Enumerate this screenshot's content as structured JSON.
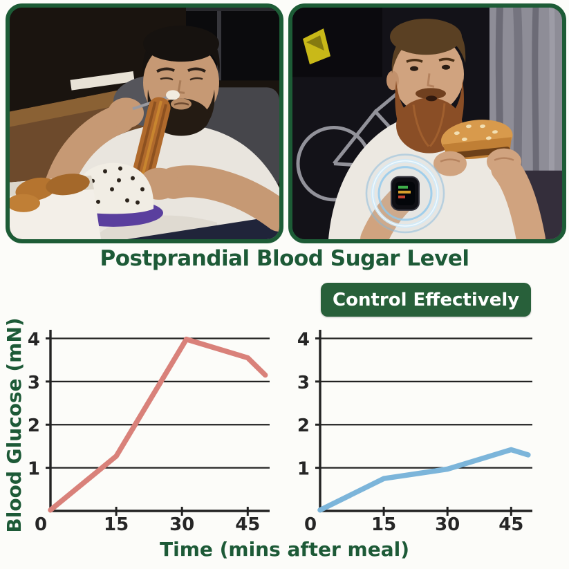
{
  "colors": {
    "background": "#fcfcf9",
    "green_text": "#1d5a37",
    "badge_bg": "#28603a",
    "photo_border": "#1d5c36",
    "axis": "#222222",
    "uncontrolled_line": "#d9817a",
    "controlled_line": "#7cb5da"
  },
  "header": {
    "title": "Postprandial Blood Sugar Level",
    "badge_label": "Control Effectively"
  },
  "photos": {
    "left_scene": "overweight-man-eating-cake-and-churros-on-couch",
    "right_scene": "bearded-man-eating-burger-wearing-glowing-smartwatch"
  },
  "axes": {
    "ylabel": "Blood Glucose (mN)",
    "xlabel": "Time (mins after meal)"
  },
  "chart_data": [
    {
      "type": "line",
      "name": "without-control",
      "x": [
        0,
        15,
        31,
        45,
        49
      ],
      "values": [
        0.02,
        1.27,
        3.98,
        3.55,
        3.15
      ],
      "color_key": "uncontrolled_line",
      "xticks": [
        15,
        30,
        45
      ],
      "yticks": [
        1,
        2,
        3,
        4
      ],
      "origin_label": "0",
      "xlim": [
        0,
        50
      ],
      "ylim": [
        0,
        4.2
      ],
      "grid": true,
      "legend": "none"
    },
    {
      "type": "line",
      "name": "with-control",
      "x": [
        0,
        15,
        30,
        45,
        49
      ],
      "values": [
        0.02,
        0.75,
        0.97,
        1.42,
        1.3
      ],
      "color_key": "controlled_line",
      "xticks": [
        15,
        30,
        45
      ],
      "yticks": [
        1,
        2,
        3,
        4
      ],
      "origin_label": "0",
      "xlim": [
        0,
        50
      ],
      "ylim": [
        0,
        4.2
      ],
      "grid": true,
      "legend": "none"
    }
  ]
}
